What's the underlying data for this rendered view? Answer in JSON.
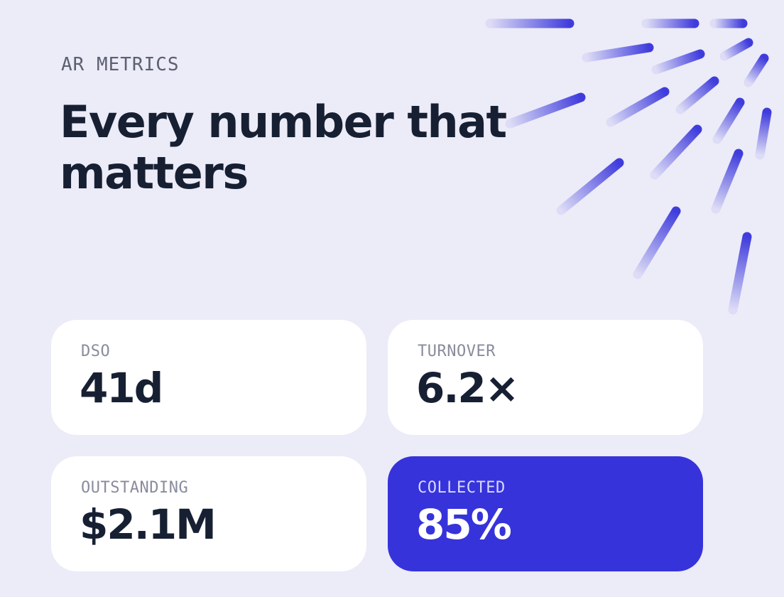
{
  "header": {
    "eyebrow": "AR METRICS",
    "title": "Every number that matters"
  },
  "metrics": [
    {
      "label": "DSO",
      "value": "41d"
    },
    {
      "label": "TURNOVER",
      "value": "6.2×"
    },
    {
      "label": "OUTSTANDING",
      "value": "$2.1M"
    },
    {
      "label": "COLLECTED",
      "value": "85%"
    }
  ],
  "colors": {
    "background": "#ecebf8",
    "accent": "#3633db",
    "text": "#172033",
    "card": "#ffffff"
  }
}
